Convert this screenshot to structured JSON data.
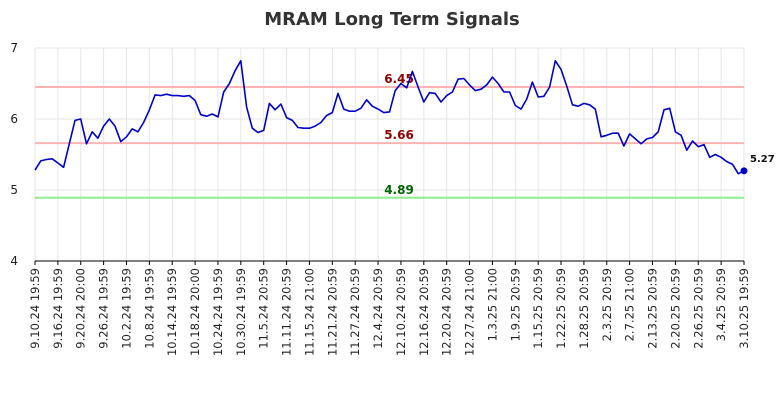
{
  "chart_data": {
    "type": "line",
    "title": "MRAM Long Term Signals",
    "xlabel": "",
    "ylabel": "",
    "ylim": [
      4,
      7
    ],
    "yticks": [
      "4",
      "5",
      "6",
      "7"
    ],
    "grid": true,
    "xtick_labels": [
      "9.10.24 19:59",
      "9.16.24 19:59",
      "9.20.24 20:00",
      "9.26.24 19:59",
      "10.2.24 19:59",
      "10.8.24 19:59",
      "10.14.24 19:59",
      "10.18.24 20:00",
      "10.24.24 19:59",
      "10.30.24 19:59",
      "11.5.24 20:59",
      "11.11.24 20:59",
      "11.15.24 21:00",
      "11.21.24 20:59",
      "11.27.24 20:59",
      "12.4.24 20:59",
      "12.10.24 20:59",
      "12.16.24 20:59",
      "12.20.24 20:59",
      "12.27.24 21:00",
      "1.3.25 21:00",
      "1.9.25 20:59",
      "1.15.25 20:59",
      "1.22.25 20:59",
      "1.28.25 20:59",
      "2.3.25 20:59",
      "2.7.25 21:00",
      "2.13.25 20:59",
      "2.20.25 20:59",
      "2.26.25 20:59",
      "3.4.25 20:59",
      "3.10.25 19:59"
    ],
    "levels": [
      {
        "value": 6.45,
        "label": "6.45",
        "color": "#8b0000",
        "line_color": "#ffb3b3"
      },
      {
        "value": 5.66,
        "label": "5.66",
        "color": "#8b0000",
        "line_color": "#ffb3b3"
      },
      {
        "value": 4.89,
        "label": "4.89",
        "color": "#006400",
        "line_color": "#90ee90"
      }
    ],
    "series": [
      {
        "color": "#0000cc",
        "values": [
          5.28,
          5.41,
          5.43,
          5.44,
          5.38,
          5.32,
          5.65,
          5.98,
          6.0,
          5.65,
          5.82,
          5.73,
          5.9,
          6.0,
          5.9,
          5.68,
          5.75,
          5.86,
          5.82,
          5.95,
          6.13,
          6.34,
          6.33,
          6.35,
          6.33,
          6.33,
          6.32,
          6.33,
          6.26,
          6.06,
          6.04,
          6.07,
          6.03,
          6.38,
          6.5,
          6.68,
          6.82,
          6.17,
          5.87,
          5.81,
          5.84,
          6.22,
          6.13,
          6.21,
          6.02,
          5.98,
          5.88,
          5.87,
          5.87,
          5.9,
          5.95,
          6.05,
          6.09,
          6.36,
          6.14,
          6.11,
          6.11,
          6.15,
          6.27,
          6.18,
          6.14,
          6.09,
          6.1,
          6.4,
          6.5,
          6.44,
          6.67,
          6.45,
          6.24,
          6.37,
          6.36,
          6.24,
          6.33,
          6.38,
          6.56,
          6.57,
          6.48,
          6.4,
          6.42,
          6.48,
          6.59,
          6.5,
          6.38,
          6.38,
          6.19,
          6.14,
          6.28,
          6.52,
          6.31,
          6.32,
          6.45,
          6.82,
          6.7,
          6.46,
          6.2,
          6.18,
          6.22,
          6.2,
          6.14,
          5.75,
          5.77,
          5.8,
          5.8,
          5.62,
          5.79,
          5.72,
          5.65,
          5.72,
          5.74,
          5.82,
          6.13,
          6.15,
          5.82,
          5.77,
          5.56,
          5.69,
          5.61,
          5.64,
          5.46,
          5.5,
          5.46,
          5.4,
          5.36,
          5.23,
          5.27
        ]
      }
    ],
    "last_value_label": "5.27"
  }
}
